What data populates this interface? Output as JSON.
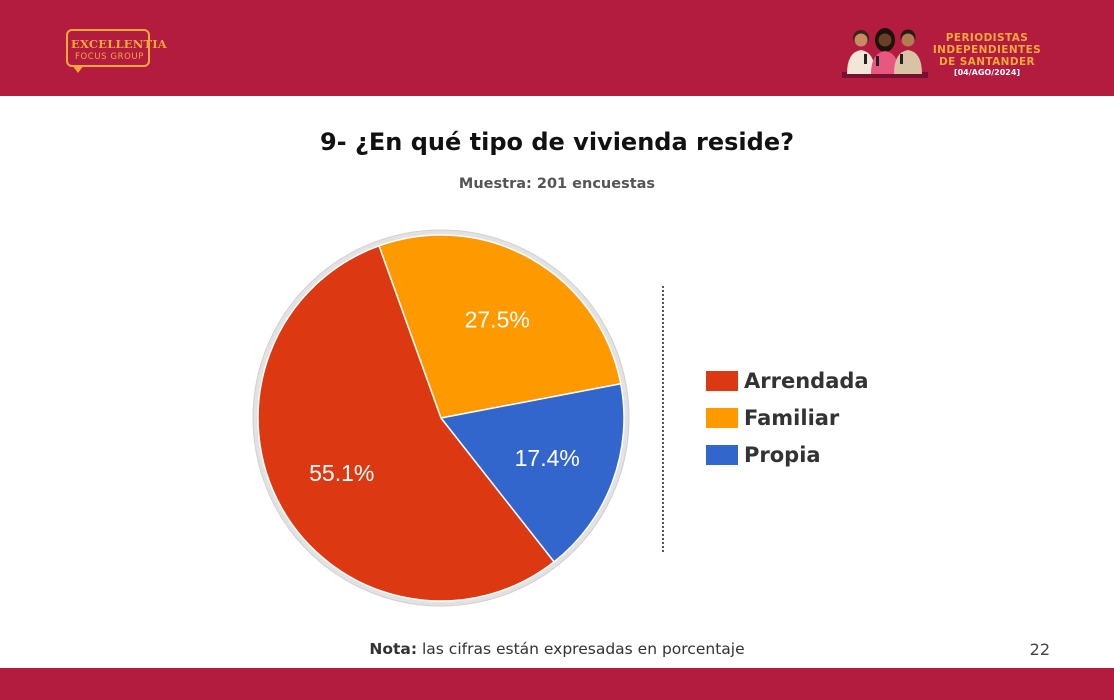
{
  "header": {
    "logo": {
      "word": "EXCELLENTIA",
      "sub": "FOCUS GROUP",
      "color": "#f2a93b"
    },
    "event": {
      "lines": [
        "PERIODISTAS",
        "INDEPENDIENTES",
        "DE SANTANDER"
      ],
      "date": "[04/AGO/2024]",
      "text_color": "#f2a93b"
    },
    "bar_color": "#b31b3f"
  },
  "chart_data": {
    "type": "pie",
    "title": "9- ¿En qué tipo de vivienda reside?",
    "subtitle": "Muestra: 201 encuestas",
    "slices": [
      {
        "label": "Familiar",
        "value": 27.5,
        "display": "27.5%",
        "color": "#ff9900"
      },
      {
        "label": "Propia",
        "value": 17.4,
        "display": "17.4%",
        "color": "#3366cc"
      },
      {
        "label": "Arrendada",
        "value": 55.1,
        "display": "55.1%",
        "color": "#dc3912"
      }
    ],
    "legend_order": [
      "Arrendada",
      "Familiar",
      "Propia"
    ],
    "legend_position": "right"
  },
  "footer": {
    "note_bold": "Nota:",
    "note_text": " las cifras están expresadas en porcentaje",
    "page_number": "22"
  }
}
